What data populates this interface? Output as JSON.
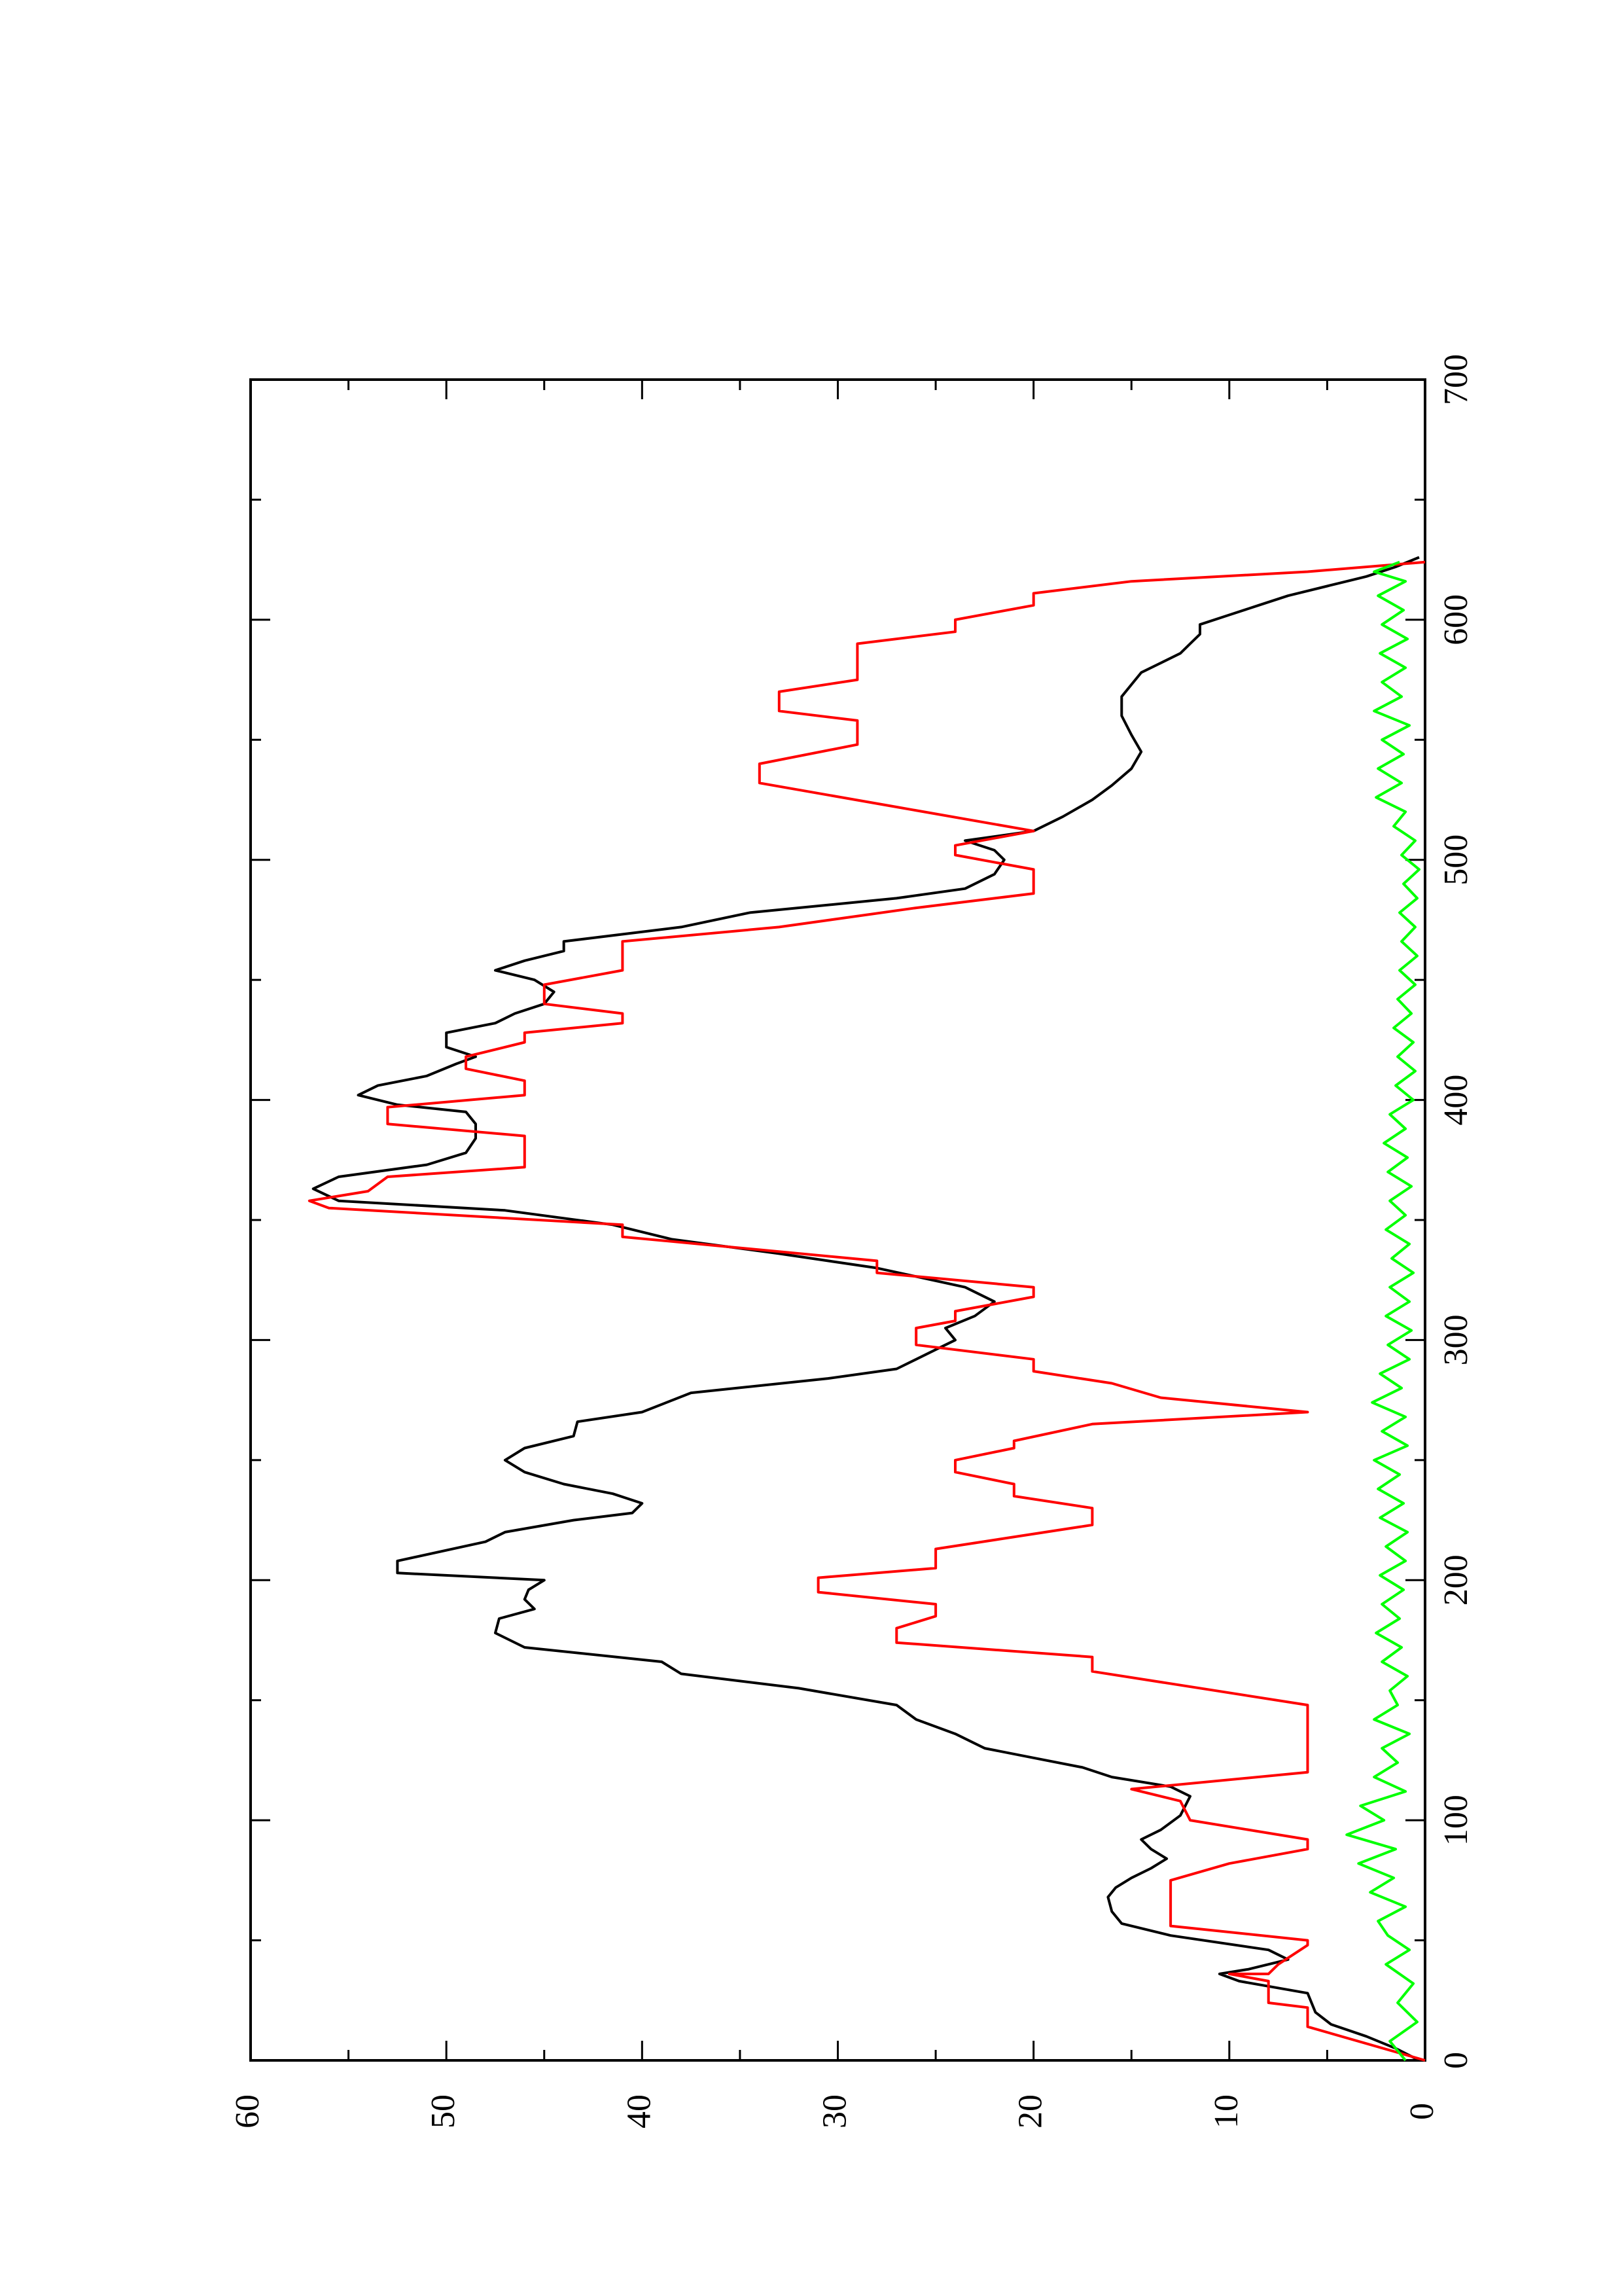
{
  "chart_data": {
    "type": "line",
    "title": "",
    "xlabel": "",
    "ylabel": "",
    "xlim": [
      0,
      700
    ],
    "ylim": [
      0,
      60
    ],
    "x_ticks": [
      0,
      100,
      200,
      300,
      400,
      500,
      600,
      700
    ],
    "y_ticks": [
      0,
      10,
      20,
      30,
      40,
      50,
      60
    ],
    "orientation": "rotated 90 degrees counter-clockwise (page portrait)",
    "grid": false,
    "legend": "none",
    "series": [
      {
        "color": "#000000",
        "points": [
          [
            0,
            0.3
          ],
          [
            5,
            1.5
          ],
          [
            10,
            3
          ],
          [
            15,
            4.8
          ],
          [
            20,
            5.6
          ],
          [
            28,
            6
          ],
          [
            33,
            9.5
          ],
          [
            36,
            10.5
          ],
          [
            38,
            9
          ],
          [
            42,
            7
          ],
          [
            46,
            8
          ],
          [
            52,
            13
          ],
          [
            57,
            15.5
          ],
          [
            62,
            16
          ],
          [
            68,
            16.2
          ],
          [
            72,
            15.8
          ],
          [
            76,
            15
          ],
          [
            80,
            14
          ],
          [
            84,
            13.2
          ],
          [
            88,
            14
          ],
          [
            92,
            14.5
          ],
          [
            96,
            13.5
          ],
          [
            102,
            12.5
          ],
          [
            110,
            12
          ],
          [
            114,
            13
          ],
          [
            118,
            16
          ],
          [
            122,
            17.5
          ],
          [
            126,
            20
          ],
          [
            130,
            22.5
          ],
          [
            136,
            24
          ],
          [
            142,
            26
          ],
          [
            148,
            27
          ],
          [
            155,
            32
          ],
          [
            161,
            38
          ],
          [
            166,
            39
          ],
          [
            172,
            46
          ],
          [
            178,
            47.5
          ],
          [
            184,
            47.3
          ],
          [
            188,
            45.5
          ],
          [
            192,
            46
          ],
          [
            196,
            45.8
          ],
          [
            200,
            45
          ],
          [
            203,
            52.5
          ],
          [
            208,
            52.5
          ],
          [
            216,
            48
          ],
          [
            220,
            47
          ],
          [
            225,
            43.5
          ],
          [
            228,
            40.5
          ],
          [
            232,
            40
          ],
          [
            236,
            41.5
          ],
          [
            240,
            44
          ],
          [
            245,
            46
          ],
          [
            250,
            47
          ],
          [
            255,
            46
          ],
          [
            260,
            43.5
          ],
          [
            266,
            43.3
          ],
          [
            270,
            40
          ],
          [
            278,
            37.5
          ],
          [
            284,
            30.5
          ],
          [
            288,
            27
          ],
          [
            292,
            26
          ],
          [
            296,
            25
          ],
          [
            300,
            24
          ],
          [
            305,
            24.5
          ],
          [
            310,
            23
          ],
          [
            316,
            22
          ],
          [
            322,
            23.5
          ],
          [
            330,
            28
          ],
          [
            336,
            33
          ],
          [
            342,
            38.5
          ],
          [
            348,
            41.5
          ],
          [
            354,
            47
          ],
          [
            358,
            55.5
          ],
          [
            363,
            56.8
          ],
          [
            368,
            55.5
          ],
          [
            373,
            51
          ],
          [
            378,
            49
          ],
          [
            384,
            48.5
          ],
          [
            390,
            48.5
          ],
          [
            395,
            49
          ],
          [
            398,
            52.5
          ],
          [
            402,
            54.5
          ],
          [
            406,
            53.5
          ],
          [
            410,
            51
          ],
          [
            415,
            49.5
          ],
          [
            418,
            48.5
          ],
          [
            422,
            50
          ],
          [
            428,
            50
          ],
          [
            432,
            47.5
          ],
          [
            436,
            46.5
          ],
          [
            440,
            45
          ],
          [
            445,
            44.5
          ],
          [
            450,
            45.5
          ],
          [
            454,
            47.5
          ],
          [
            458,
            46
          ],
          [
            462,
            44
          ],
          [
            466,
            44
          ],
          [
            472,
            38
          ],
          [
            478,
            34.5
          ],
          [
            484,
            27
          ],
          [
            488,
            23.5
          ],
          [
            494,
            22
          ],
          [
            500,
            21.5
          ],
          [
            504,
            22
          ],
          [
            508,
            23.5
          ],
          [
            512,
            20
          ],
          [
            518,
            18.5
          ],
          [
            525,
            17
          ],
          [
            531,
            16
          ],
          [
            538,
            15
          ],
          [
            545,
            14.5
          ],
          [
            552,
            15
          ],
          [
            560,
            15.5
          ],
          [
            568,
            15.5
          ],
          [
            573,
            15
          ],
          [
            578,
            14.5
          ],
          [
            582,
            13.5
          ],
          [
            586,
            12.5
          ],
          [
            590,
            12
          ],
          [
            594,
            11.5
          ],
          [
            598,
            11.5
          ],
          [
            602,
            10
          ],
          [
            606,
            8.5
          ],
          [
            610,
            7
          ],
          [
            614,
            5
          ],
          [
            618,
            3
          ],
          [
            622,
            1.5
          ],
          [
            626,
            0.3
          ]
        ]
      },
      {
        "color": "#ff0000",
        "points": [
          [
            0,
            0
          ],
          [
            14,
            6
          ],
          [
            22,
            6
          ],
          [
            24,
            8
          ],
          [
            33,
            8
          ],
          [
            36,
            10
          ],
          [
            36,
            8
          ],
          [
            40,
            7.5
          ],
          [
            48,
            6
          ],
          [
            50,
            6
          ],
          [
            56,
            13
          ],
          [
            75,
            13
          ],
          [
            82,
            10
          ],
          [
            88,
            6
          ],
          [
            92,
            6
          ],
          [
            100,
            12
          ],
          [
            108,
            12.5
          ],
          [
            113,
            15
          ],
          [
            120,
            6
          ],
          [
            148,
            6
          ],
          [
            162,
            17
          ],
          [
            168,
            17
          ],
          [
            174,
            27
          ],
          [
            180,
            27
          ],
          [
            185,
            25
          ],
          [
            190,
            25
          ],
          [
            195,
            31
          ],
          [
            201,
            31
          ],
          [
            205,
            25
          ],
          [
            213,
            25
          ],
          [
            223,
            17
          ],
          [
            230,
            17
          ],
          [
            235,
            21
          ],
          [
            240,
            21
          ],
          [
            245,
            24
          ],
          [
            250,
            24
          ],
          [
            255,
            21
          ],
          [
            258,
            21
          ],
          [
            265,
            17
          ],
          [
            270,
            6
          ],
          [
            276,
            13.5
          ],
          [
            282,
            16
          ],
          [
            287,
            20
          ],
          [
            292,
            20
          ],
          [
            298,
            26
          ],
          [
            305,
            26
          ],
          [
            308,
            24
          ],
          [
            312,
            24
          ],
          [
            318,
            20
          ],
          [
            322,
            20
          ],
          [
            328,
            28
          ],
          [
            333,
            28
          ],
          [
            343,
            41
          ],
          [
            348,
            41
          ],
          [
            355,
            56
          ],
          [
            358,
            57
          ],
          [
            362,
            54
          ],
          [
            368,
            53
          ],
          [
            372,
            46
          ],
          [
            385,
            46
          ],
          [
            390,
            53
          ],
          [
            397,
            53
          ],
          [
            402,
            46
          ],
          [
            408,
            46
          ],
          [
            413,
            49
          ],
          [
            418,
            49
          ],
          [
            424,
            46
          ],
          [
            428,
            46
          ],
          [
            432,
            41
          ],
          [
            436,
            41
          ],
          [
            440,
            45
          ],
          [
            448,
            45
          ],
          [
            454,
            41
          ],
          [
            466,
            41
          ],
          [
            472,
            33
          ],
          [
            480,
            26
          ],
          [
            486,
            20
          ],
          [
            496,
            20
          ],
          [
            502,
            24
          ],
          [
            506,
            24
          ],
          [
            512,
            20
          ],
          [
            522,
            27
          ],
          [
            532,
            34
          ],
          [
            540,
            34
          ],
          [
            548,
            29
          ],
          [
            558,
            29
          ],
          [
            562,
            33
          ],
          [
            570,
            33
          ],
          [
            575,
            29
          ],
          [
            590,
            29
          ],
          [
            595,
            24
          ],
          [
            600,
            24
          ],
          [
            606,
            20
          ],
          [
            611,
            20
          ],
          [
            616,
            15
          ],
          [
            620,
            6
          ],
          [
            624,
            0
          ]
        ]
      },
      {
        "color": "#00ff00",
        "points": [
          [
            0,
            1.0
          ],
          [
            8,
            1.8
          ],
          [
            16,
            0.4
          ],
          [
            24,
            1.4
          ],
          [
            32,
            0.6
          ],
          [
            40,
            2.0
          ],
          [
            46,
            0.8
          ],
          [
            52,
            1.9
          ],
          [
            58,
            2.4
          ],
          [
            64,
            1.0
          ],
          [
            70,
            2.8
          ],
          [
            76,
            1.6
          ],
          [
            82,
            3.4
          ],
          [
            88,
            1.5
          ],
          [
            94,
            4.0
          ],
          [
            100,
            2.1
          ],
          [
            106,
            3.3
          ],
          [
            112,
            1.0
          ],
          [
            118,
            2.6
          ],
          [
            124,
            1.4
          ],
          [
            130,
            2.2
          ],
          [
            136,
            0.8
          ],
          [
            142,
            2.6
          ],
          [
            148,
            1.4
          ],
          [
            154,
            1.8
          ],
          [
            160,
            0.9
          ],
          [
            166,
            2.2
          ],
          [
            172,
            1.2
          ],
          [
            178,
            2.5
          ],
          [
            184,
            1.3
          ],
          [
            190,
            2.2
          ],
          [
            196,
            1.1
          ],
          [
            202,
            2.3
          ],
          [
            208,
            1.0
          ],
          [
            214,
            2.0
          ],
          [
            220,
            0.9
          ],
          [
            226,
            2.3
          ],
          [
            232,
            1.1
          ],
          [
            238,
            2.4
          ],
          [
            244,
            1.3
          ],
          [
            250,
            2.6
          ],
          [
            256,
            0.9
          ],
          [
            262,
            2.2
          ],
          [
            268,
            1.0
          ],
          [
            274,
            2.7
          ],
          [
            280,
            1.2
          ],
          [
            286,
            2.3
          ],
          [
            292,
            0.8
          ],
          [
            298,
            1.9
          ],
          [
            304,
            0.7
          ],
          [
            310,
            2.0
          ],
          [
            316,
            0.8
          ],
          [
            322,
            1.8
          ],
          [
            328,
            0.6
          ],
          [
            334,
            1.7
          ],
          [
            340,
            0.8
          ],
          [
            346,
            2.0
          ],
          [
            352,
            1.0
          ],
          [
            358,
            1.8
          ],
          [
            364,
            0.7
          ],
          [
            370,
            1.9
          ],
          [
            376,
            0.9
          ],
          [
            382,
            2.1
          ],
          [
            388,
            1.0
          ],
          [
            394,
            1.8
          ],
          [
            400,
            0.6
          ],
          [
            406,
            1.5
          ],
          [
            412,
            0.5
          ],
          [
            418,
            1.4
          ],
          [
            424,
            0.6
          ],
          [
            430,
            1.6
          ],
          [
            436,
            0.7
          ],
          [
            442,
            1.4
          ],
          [
            448,
            0.5
          ],
          [
            454,
            1.3
          ],
          [
            460,
            0.4
          ],
          [
            466,
            1.2
          ],
          [
            472,
            0.5
          ],
          [
            478,
            1.3
          ],
          [
            484,
            0.4
          ],
          [
            490,
            1.1
          ],
          [
            496,
            0.3
          ],
          [
            502,
            1.2
          ],
          [
            508,
            0.5
          ],
          [
            514,
            1.6
          ],
          [
            520,
            1.0
          ],
          [
            526,
            2.5
          ],
          [
            532,
            1.2
          ],
          [
            538,
            2.4
          ],
          [
            544,
            1.1
          ],
          [
            550,
            2.2
          ],
          [
            556,
            0.8
          ],
          [
            562,
            2.6
          ],
          [
            568,
            1.2
          ],
          [
            574,
            2.2
          ],
          [
            580,
            1.0
          ],
          [
            586,
            2.3
          ],
          [
            592,
            0.9
          ],
          [
            598,
            2.2
          ],
          [
            604,
            1.1
          ],
          [
            610,
            2.4
          ],
          [
            616,
            1.0
          ],
          [
            620,
            2.6
          ],
          [
            624,
            1.3
          ]
        ]
      }
    ]
  }
}
